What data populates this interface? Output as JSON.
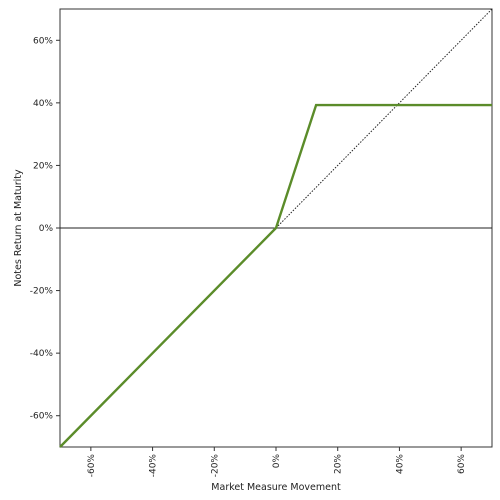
{
  "chart_data": {
    "type": "line",
    "title": "",
    "xlabel": "Market Measure Movement",
    "ylabel": "Notes Return at Maturity",
    "xlim": [
      -70,
      70
    ],
    "ylim": [
      -70,
      70
    ],
    "x_ticks": [
      -60,
      -40,
      -20,
      0,
      20,
      40,
      60
    ],
    "x_tick_labels": [
      "-60%",
      "-40%",
      "-20%",
      "0%",
      "20%",
      "40%",
      "60%"
    ],
    "y_ticks": [
      60,
      40,
      20,
      0,
      -20,
      -40,
      -60
    ],
    "y_tick_labels": [
      "60%",
      "40%",
      "20%",
      "0%",
      "-20%",
      "-40%",
      "-60%"
    ],
    "grid": false,
    "legend": "none",
    "series": [
      {
        "style": "solid",
        "color": "#5b8c2a",
        "x": [
          -70,
          0,
          13,
          70
        ],
        "y": [
          -70,
          0,
          39.3,
          39.3
        ]
      },
      {
        "style": "dotted",
        "color": "#222222",
        "x": [
          0,
          70
        ],
        "y": [
          0,
          70
        ]
      }
    ],
    "reference_lines": [
      {
        "axis": "y",
        "value": 0,
        "color": "#222222"
      }
    ]
  }
}
